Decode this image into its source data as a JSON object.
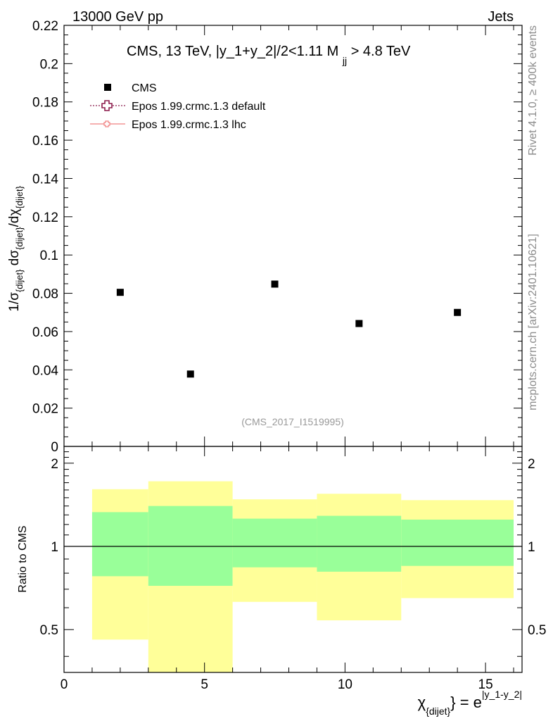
{
  "header": {
    "left": "13000 GeV pp",
    "right": "Jets"
  },
  "side_labels": {
    "rivet": "Rivet 4.1.0, ≥ 400k events",
    "mcplots": "mcplots.cern.ch [arXiv:2401.10621]"
  },
  "chart_data": [
    {
      "type": "scatter",
      "panel": "main",
      "title": "CMS, 13 TeV, |y_1+y_2|/2<1.11 M",
      "title_sub": "jj",
      "title_tail": "> 4.8 TeV",
      "ylabel": "1/σ{dijet} dσ{dijet}/dχ{dijet}",
      "ylim": [
        0,
        0.22
      ],
      "xlim": [
        0,
        16.3
      ],
      "yticks": [
        "0",
        "0.02",
        "0.04",
        "0.06",
        "0.08",
        "0.1",
        "0.12",
        "0.14",
        "0.16",
        "0.18",
        "0.2",
        "0.22"
      ],
      "watermark": "(CMS_2017_I1519995)",
      "legend": [
        {
          "label": "CMS",
          "style": "square",
          "color": "#000000"
        },
        {
          "label": "Epos 1.99.crmc.1.3 default",
          "style": "cross-dotted",
          "color": "#8b1a4a"
        },
        {
          "label": "Epos 1.99.crmc.1.3 lhc",
          "style": "cross-line",
          "color": "#f08080"
        }
      ],
      "series": [
        {
          "name": "CMS",
          "points": [
            {
              "x": 2.0,
              "y": 0.0805
            },
            {
              "x": 4.5,
              "y": 0.0378
            },
            {
              "x": 7.5,
              "y": 0.0848
            },
            {
              "x": 10.5,
              "y": 0.0642
            },
            {
              "x": 14.0,
              "y": 0.07
            }
          ]
        }
      ]
    },
    {
      "type": "area",
      "panel": "ratio",
      "ylabel": "Ratio to CMS",
      "xlabel": "χ{dijet} = e^|y_1-y_2|",
      "ylim": [
        0.35,
        2.3
      ],
      "xlim": [
        0,
        16.3
      ],
      "xticks": [
        "0",
        "5",
        "10",
        "15"
      ],
      "yticks": [
        "0.5",
        "1",
        "2"
      ],
      "reference": 1,
      "bins": [
        {
          "x0": 1,
          "x1": 3,
          "green": [
            0.78,
            1.33
          ],
          "yellow": [
            0.46,
            1.61
          ]
        },
        {
          "x0": 3,
          "x1": 6,
          "green": [
            0.72,
            1.4
          ],
          "yellow": [
            0.35,
            1.72
          ]
        },
        {
          "x0": 6,
          "x1": 9,
          "green": [
            0.84,
            1.26
          ],
          "yellow": [
            0.63,
            1.48
          ]
        },
        {
          "x0": 9,
          "x1": 12,
          "green": [
            0.81,
            1.29
          ],
          "yellow": [
            0.54,
            1.55
          ]
        },
        {
          "x0": 12,
          "x1": 16,
          "green": [
            0.85,
            1.25
          ],
          "yellow": [
            0.65,
            1.47
          ]
        }
      ],
      "colors": {
        "green": "#99ff99",
        "yellow": "#ffff99"
      }
    }
  ]
}
